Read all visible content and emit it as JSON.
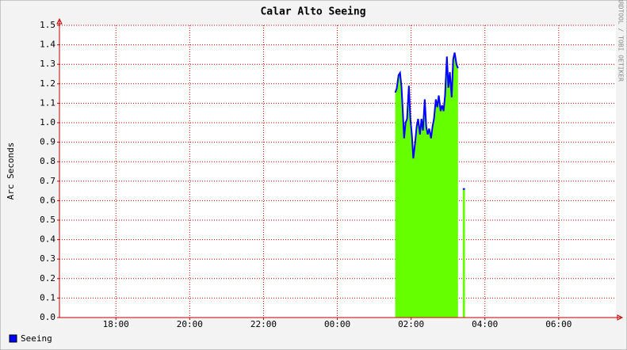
{
  "chart_data": {
    "type": "line",
    "title": "Calar Alto Seeing",
    "ylabel": "Arc Seconds",
    "watermark": "RRDTOOL / TOBI OETIKER",
    "series": [
      {
        "name": "Seeing",
        "color": "#0000ff",
        "fill": "#66ff00",
        "x": [
          25.57,
          25.61,
          25.66,
          25.7,
          25.74,
          25.78,
          25.81,
          25.85,
          25.89,
          25.94,
          25.98,
          26.02,
          26.06,
          26.11,
          26.15,
          26.19,
          26.24,
          26.28,
          26.32,
          26.37,
          26.41,
          26.45,
          26.49,
          26.54,
          26.58,
          26.62,
          26.67,
          26.71,
          26.75,
          26.8,
          26.84,
          26.88,
          26.92,
          26.97,
          27.01,
          27.05,
          27.1,
          27.14,
          27.18,
          27.23,
          27.27,
          27.33,
          27.4,
          27.46
        ],
        "values": [
          1.155,
          1.175,
          1.244,
          1.256,
          1.183,
          1.04,
          0.92,
          1.0,
          1.02,
          1.19,
          1.02,
          0.94,
          0.817,
          0.9,
          0.98,
          1.02,
          0.94,
          1.02,
          0.96,
          1.12,
          0.98,
          0.94,
          0.97,
          0.92,
          0.98,
          1.02,
          1.12,
          1.08,
          1.14,
          1.06,
          1.09,
          1.06,
          1.14,
          1.34,
          1.18,
          1.26,
          1.13,
          1.325,
          1.36,
          1.3,
          1.28,
          null,
          0.66,
          0.66
        ]
      }
    ],
    "xlim": [
      16.47,
      31.55
    ],
    "xticks": [
      {
        "value": 18,
        "label": "18:00"
      },
      {
        "value": 20,
        "label": "20:00"
      },
      {
        "value": 22,
        "label": "22:00"
      },
      {
        "value": 24,
        "label": "00:00"
      },
      {
        "value": 26,
        "label": "02:00"
      },
      {
        "value": 28,
        "label": "04:00"
      },
      {
        "value": 30,
        "label": "06:00"
      }
    ],
    "ylim": [
      0,
      1.5
    ],
    "yticks": [
      {
        "value": 0,
        "label": "0.0"
      },
      0.1,
      0.2,
      0.3,
      0.4,
      0.5,
      0.6,
      0.7,
      0.8,
      0.9,
      {
        "value": 1,
        "label": "1.0"
      },
      1.1,
      1.2,
      1.3,
      1.4,
      1.5
    ],
    "grid": true,
    "legend": "bottom-left"
  }
}
